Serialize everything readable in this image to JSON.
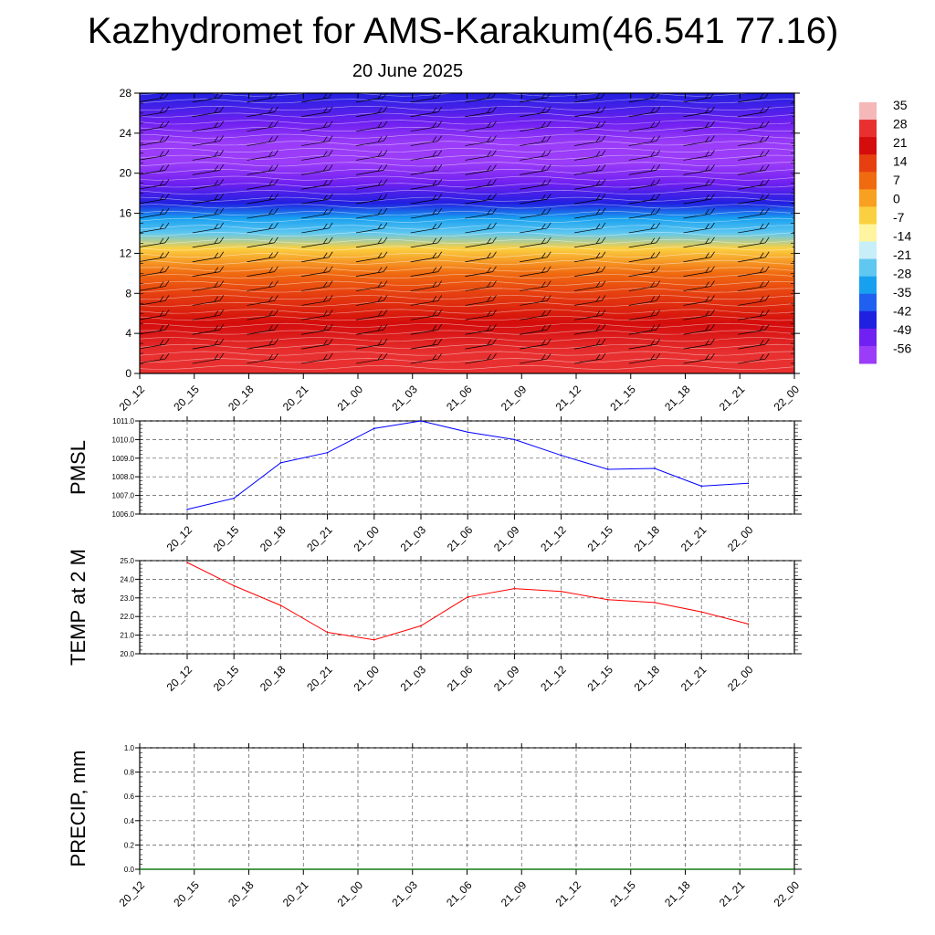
{
  "title": "Kazhydromet for AMS-Karakum(46.541 77.16)",
  "subtitle": "20 June 2025",
  "colorbar": {
    "labels": [
      "35",
      "28",
      "21",
      "14",
      "7",
      "0",
      "-7",
      "-14",
      "-21",
      "-28",
      "-35",
      "-42",
      "-49",
      "-56"
    ],
    "colors": [
      "#f5b8b8",
      "#e83030",
      "#d40c0c",
      "#e64010",
      "#f06a10",
      "#f8a020",
      "#fbd040",
      "#fff4a0",
      "#c8eef8",
      "#60c8f0",
      "#18a0f0",
      "#2060f0",
      "#2020e0",
      "#7020f0",
      "#9a3cf8"
    ]
  },
  "chart_data": [
    {
      "type": "heatmap",
      "title": "",
      "xlabel": "",
      "ylabel": "",
      "categories": [
        "20_12",
        "20_15",
        "20_18",
        "20_21",
        "21_00",
        "21_03",
        "21_06",
        "21_09",
        "21_12",
        "21_15",
        "21_18",
        "21_21",
        "22_00"
      ],
      "y_ticks": [
        "0",
        "4",
        "8",
        "12",
        "16",
        "20",
        "24",
        "28"
      ],
      "ylim": [
        0,
        28
      ],
      "color_scale": [
        {
          "level": 0,
          "value": 30
        },
        {
          "level": 2,
          "value": 27
        },
        {
          "level": 5,
          "value": 22
        },
        {
          "level": 8,
          "value": 14
        },
        {
          "level": 10,
          "value": 7
        },
        {
          "level": 12.5,
          "value": -7
        },
        {
          "level": 14,
          "value": -21
        },
        {
          "level": 15.5,
          "value": -33
        },
        {
          "level": 17,
          "value": -42
        },
        {
          "level": 19,
          "value": -52
        },
        {
          "level": 21,
          "value": -58
        },
        {
          "level": 23,
          "value": -55
        },
        {
          "level": 25,
          "value": -50
        },
        {
          "level": 28,
          "value": -45
        }
      ],
      "wind_barbs": true
    },
    {
      "type": "line",
      "ylabel": "PMSL",
      "categories": [
        "20_12",
        "20_15",
        "20_18",
        "20_21",
        "21_00",
        "21_03",
        "21_06",
        "21_09",
        "21_12",
        "21_15",
        "21_18",
        "21_21",
        "22_00"
      ],
      "y_ticks": [
        "1006.0",
        "1007.0",
        "1008.0",
        "1009.0",
        "1010.0",
        "1011.0"
      ],
      "ylim": [
        1006.0,
        1011.0
      ],
      "series": [
        {
          "values": [
            1006.25,
            1006.85,
            1008.75,
            1009.3,
            1010.6,
            1011.0,
            1010.4,
            1010.0,
            1009.15,
            1008.4,
            1008.45,
            1007.5,
            1007.65
          ],
          "color": "#0000ff"
        }
      ],
      "grid": true
    },
    {
      "type": "line",
      "ylabel": "TEMP at 2 M",
      "categories": [
        "20_12",
        "20_15",
        "20_18",
        "20_21",
        "21_00",
        "21_03",
        "21_06",
        "21_09",
        "21_12",
        "21_15",
        "21_18",
        "21_21",
        "22_00"
      ],
      "y_ticks": [
        "20.0",
        "21.0",
        "22.0",
        "23.0",
        "24.0",
        "25.0"
      ],
      "ylim": [
        20.0,
        25.0
      ],
      "series": [
        {
          "values": [
            24.9,
            23.65,
            22.6,
            21.15,
            20.75,
            21.5,
            23.05,
            23.5,
            23.35,
            22.9,
            22.75,
            22.25,
            21.6
          ],
          "color": "#ff0000"
        }
      ],
      "grid": true
    },
    {
      "type": "line",
      "ylabel": "PRECIP, mm",
      "categories": [
        "20_12",
        "20_15",
        "20_18",
        "20_21",
        "21_00",
        "21_03",
        "21_06",
        "21_09",
        "21_12",
        "21_15",
        "21_18",
        "21_21",
        "22_00"
      ],
      "y_ticks": [
        "0.0",
        "0.2",
        "0.4",
        "0.6",
        "0.8",
        "1.0"
      ],
      "ylim": [
        0.0,
        1.0
      ],
      "series": [
        {
          "values": [
            0,
            0,
            0,
            0,
            0,
            0,
            0,
            0,
            0,
            0,
            0,
            0,
            0
          ],
          "color": "#008000"
        }
      ],
      "grid": true
    }
  ]
}
